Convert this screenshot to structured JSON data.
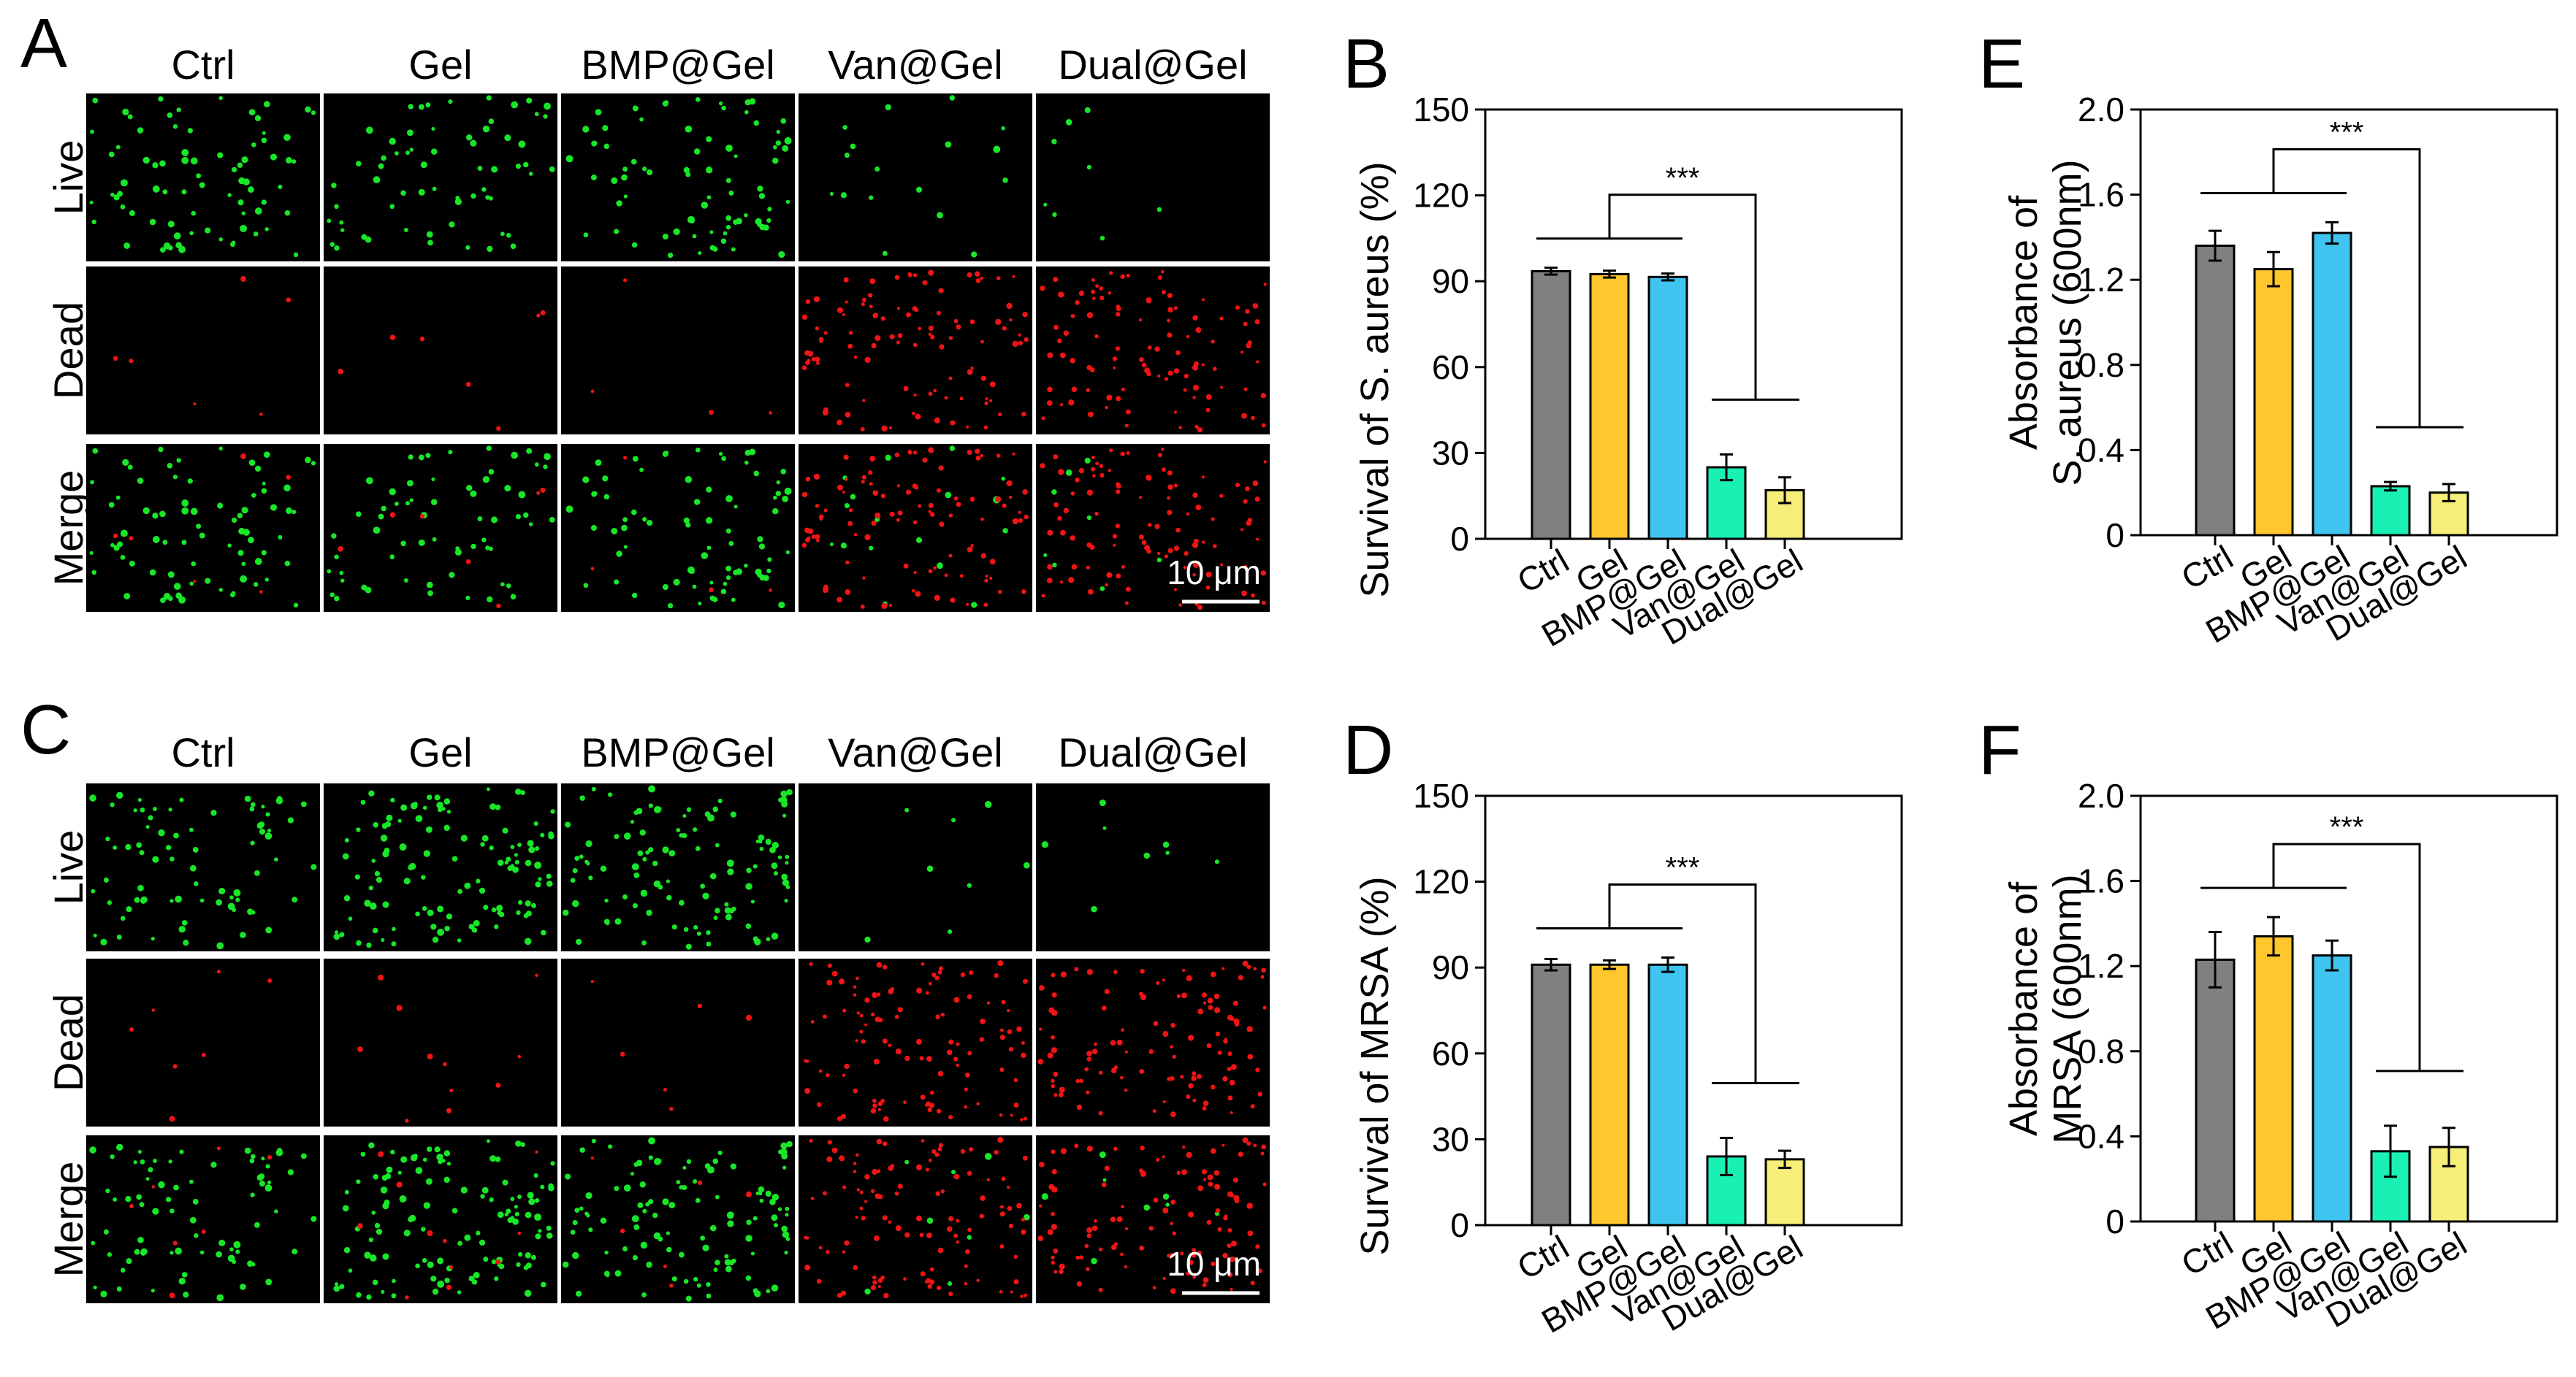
{
  "micrographs": [
    {
      "panel": "A",
      "columns": [
        "Ctrl",
        "Gel",
        "BMP@Gel",
        "Van@Gel",
        "Dual@Gel"
      ],
      "rows": [
        "Live",
        "Dead",
        "Merge"
      ],
      "scale_bar": "10 μm",
      "live_density": [
        0.55,
        0.45,
        0.55,
        0.12,
        0.06
      ],
      "dead_density": [
        0.04,
        0.05,
        0.03,
        0.75,
        0.75
      ]
    },
    {
      "panel": "C",
      "columns": [
        "Ctrl",
        "Gel",
        "BMP@Gel",
        "Van@Gel",
        "Dual@Gel"
      ],
      "rows": [
        "Live",
        "Dead",
        "Merge"
      ],
      "scale_bar": "10 μm",
      "live_density": [
        0.55,
        0.85,
        0.8,
        0.06,
        0.06
      ],
      "dead_density": [
        0.05,
        0.08,
        0.04,
        0.8,
        0.8
      ]
    }
  ],
  "chart_data": [
    {
      "panel": "B",
      "type": "bar",
      "title": "",
      "xlabel": "",
      "ylabel": "Survival of S. aureus (%)",
      "ylabel_lines": [
        "Survival of S. aureus (%)"
      ],
      "categories": [
        "Ctrl",
        "Gel",
        "BMP@Gel",
        "Van@Gel",
        "Dual@Gel"
      ],
      "values": [
        93.5,
        92.5,
        91.5,
        25,
        17
      ],
      "errors": [
        1.2,
        1.2,
        1.2,
        4.5,
        4.5
      ],
      "ylim": [
        0,
        150
      ],
      "yticks": [
        "0",
        "30",
        "60",
        "90",
        "120",
        "150"
      ],
      "significance": "***",
      "grid": false
    },
    {
      "panel": "D",
      "type": "bar",
      "title": "",
      "xlabel": "",
      "ylabel": "Survival of MRSA (%)",
      "ylabel_lines": [
        "Survival of MRSA (%)"
      ],
      "categories": [
        "Ctrl",
        "Gel",
        "BMP@Gel",
        "Van@Gel",
        "Dual@Gel"
      ],
      "values": [
        91,
        91,
        91,
        24,
        23
      ],
      "errors": [
        2,
        1.5,
        2.5,
        6.5,
        3
      ],
      "ylim": [
        0,
        150
      ],
      "yticks": [
        "0",
        "30",
        "60",
        "90",
        "120",
        "150"
      ],
      "significance": "***",
      "grid": false
    },
    {
      "panel": "E",
      "type": "bar",
      "title": "",
      "xlabel": "",
      "ylabel": "Absorbance of S. aureus (600nm)",
      "ylabel_lines": [
        "Absorbance of",
        "S. aureus (600nm)"
      ],
      "categories": [
        "Ctrl",
        "Gel",
        "BMP@Gel",
        "Van@Gel",
        "Dual@Gel"
      ],
      "values": [
        1.36,
        1.25,
        1.42,
        0.23,
        0.2
      ],
      "errors": [
        0.07,
        0.08,
        0.05,
        0.02,
        0.04
      ],
      "ylim": [
        0,
        2.0
      ],
      "yticks": [
        "0",
        "0.4",
        "0.8",
        "1.2",
        "1.6",
        "2.0"
      ],
      "significance": "***",
      "grid": false
    },
    {
      "panel": "F",
      "type": "bar",
      "title": "",
      "xlabel": "",
      "ylabel": "Absorbance of MRSA (600nm)",
      "ylabel_lines": [
        "Absorbance of",
        "MRSA (600nm)"
      ],
      "categories": [
        "Ctrl",
        "Gel",
        "BMP@Gel",
        "Van@Gel",
        "Dual@Gel"
      ],
      "values": [
        1.23,
        1.34,
        1.25,
        0.33,
        0.35
      ],
      "errors": [
        0.13,
        0.09,
        0.07,
        0.12,
        0.09
      ],
      "ylim": [
        0,
        2.0
      ],
      "yticks": [
        "0",
        "0.4",
        "0.8",
        "1.2",
        "1.6",
        "2.0"
      ],
      "significance": "***",
      "grid": false
    }
  ],
  "colors": {
    "bars": [
      "#808080",
      "#ffc62e",
      "#3fc4f0",
      "#19f0b4",
      "#f5ee78"
    ],
    "live_cell": "#19e628",
    "dead_cell": "#f01414",
    "micrograph_bg": "#000000",
    "divider": "#ffffff"
  }
}
